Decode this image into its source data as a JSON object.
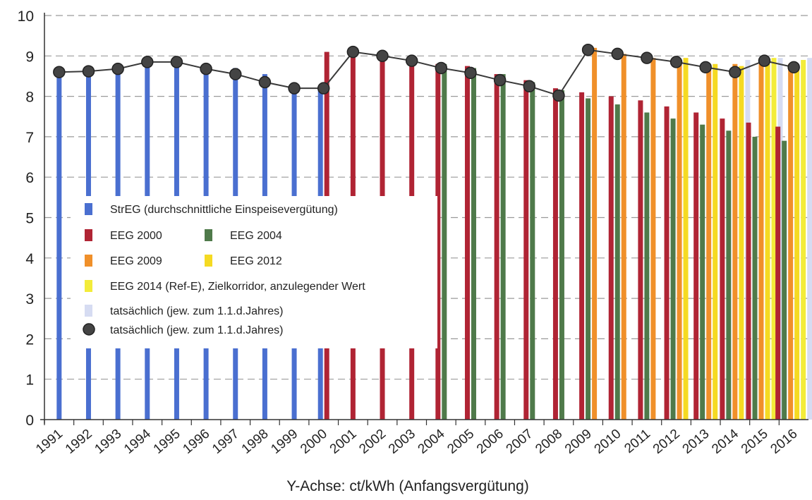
{
  "chart_data": {
    "type": "bar",
    "xlabel": "Y-Achse: ct/kWh (Anfangsvergütung)",
    "ylabel": "",
    "ylim": [
      0,
      10
    ],
    "yticks": [
      0,
      1,
      2,
      3,
      4,
      5,
      6,
      7,
      8,
      9,
      10
    ],
    "grid": "horizontal-dashed",
    "legend_position": "left-center",
    "categories": [
      "1991",
      "1992",
      "1993",
      "1994",
      "1995",
      "1996",
      "1997",
      "1998",
      "1999",
      "2000",
      "2001",
      "2002",
      "2003",
      "2004",
      "2005",
      "2006",
      "2007",
      "2008",
      "2009",
      "2010",
      "2011",
      "2012",
      "2013",
      "2014",
      "2015",
      "2016"
    ],
    "series": [
      {
        "name": "StrEG (durchschnittliche Einspeisevergütung)",
        "color": "#4a6fd0",
        "values": [
          8.55,
          8.6,
          8.65,
          8.85,
          8.9,
          8.8,
          8.7,
          8.55,
          8.3,
          8.2,
          null,
          null,
          null,
          null,
          null,
          null,
          null,
          null,
          null,
          null,
          null,
          null,
          null,
          null,
          null,
          null
        ]
      },
      {
        "name": "EEG 2000",
        "color": "#b02434",
        "values": [
          null,
          null,
          null,
          null,
          null,
          null,
          null,
          null,
          null,
          9.1,
          9.1,
          9.05,
          8.85,
          8.8,
          8.75,
          8.55,
          8.4,
          8.2,
          8.1,
          8.0,
          7.9,
          7.75,
          7.6,
          7.45,
          7.35,
          7.25
        ]
      },
      {
        "name": "EEG 2004",
        "color": "#4f7a4a",
        "values": [
          null,
          null,
          null,
          null,
          null,
          null,
          null,
          null,
          null,
          null,
          null,
          null,
          null,
          8.8,
          8.7,
          8.55,
          8.35,
          8.15,
          7.95,
          7.8,
          7.6,
          7.45,
          7.3,
          7.15,
          7.0,
          6.9
        ]
      },
      {
        "name": "EEG 2009",
        "color": "#f0902a",
        "values": [
          null,
          null,
          null,
          null,
          null,
          null,
          null,
          null,
          null,
          null,
          null,
          null,
          null,
          null,
          null,
          null,
          null,
          null,
          9.2,
          9.05,
          8.95,
          8.85,
          8.8,
          8.8,
          8.8,
          8.8
        ]
      },
      {
        "name": "EEG 2012",
        "color": "#f5da22",
        "values": [
          null,
          null,
          null,
          null,
          null,
          null,
          null,
          null,
          null,
          null,
          null,
          null,
          null,
          null,
          null,
          null,
          null,
          null,
          null,
          null,
          null,
          8.95,
          8.8,
          8.75,
          8.8,
          8.75
        ]
      },
      {
        "name": "EEG 2014 (Ref-E), Zielkorridor, anzulegender Wert",
        "color": "#f3ec3a",
        "values": [
          null,
          null,
          null,
          null,
          null,
          null,
          null,
          null,
          null,
          null,
          null,
          null,
          null,
          null,
          null,
          null,
          null,
          null,
          null,
          null,
          null,
          null,
          null,
          null,
          8.95,
          8.9
        ]
      },
      {
        "name": "tatsächlich (jew. zum 1.1.d.Jahres)",
        "color": "#d6dcf2",
        "values": [
          null,
          null,
          null,
          null,
          null,
          null,
          null,
          null,
          null,
          null,
          null,
          null,
          null,
          null,
          null,
          null,
          null,
          null,
          null,
          null,
          null,
          null,
          null,
          8.9,
          8.95,
          8.95
        ]
      },
      {
        "name": "tatsächlich (jew. zum 1.1.d.Jahres)",
        "type": "line",
        "color": "#444444",
        "values": [
          8.6,
          8.62,
          8.68,
          8.85,
          8.85,
          8.68,
          8.55,
          8.35,
          8.2,
          8.2,
          9.1,
          9.0,
          8.88,
          8.7,
          8.58,
          8.4,
          8.25,
          8.02,
          9.15,
          9.05,
          8.95,
          8.85,
          8.72,
          8.6,
          8.88,
          8.72
        ]
      }
    ]
  }
}
